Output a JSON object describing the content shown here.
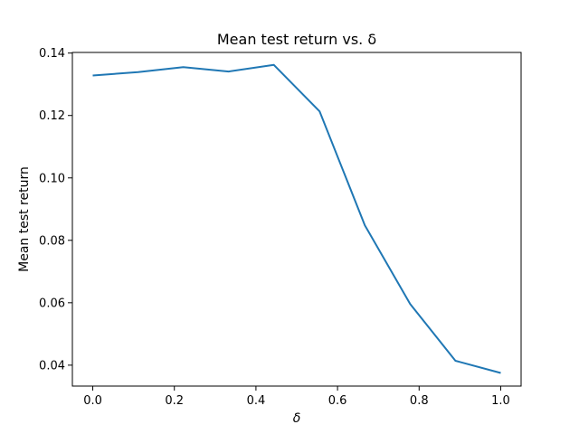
{
  "chart_data": {
    "type": "line",
    "title": "Mean test return vs. δ",
    "xlabel": "δ",
    "ylabel": "Mean test return",
    "xlim": [
      -0.05,
      1.05
    ],
    "ylim": [
      0.0333,
      0.1402
    ],
    "xticks": [
      0.0,
      0.2,
      0.4,
      0.6,
      0.8,
      1.0
    ],
    "xtick_labels": [
      "0.0",
      "0.2",
      "0.4",
      "0.6",
      "0.8",
      "1.0"
    ],
    "yticks": [
      0.04,
      0.06,
      0.08,
      0.1,
      0.12,
      0.14
    ],
    "ytick_labels": [
      "0.04",
      "0.06",
      "0.08",
      "0.10",
      "0.12",
      "0.14"
    ],
    "grid": false,
    "series": [
      {
        "color": "#1f77b4",
        "x": [
          0.0,
          0.111,
          0.222,
          0.333,
          0.444,
          0.556,
          0.667,
          0.778,
          0.889,
          1.0
        ],
        "y": [
          0.1328,
          0.1339,
          0.1355,
          0.1341,
          0.1362,
          0.1213,
          0.0848,
          0.0596,
          0.0414,
          0.0375
        ]
      }
    ]
  }
}
